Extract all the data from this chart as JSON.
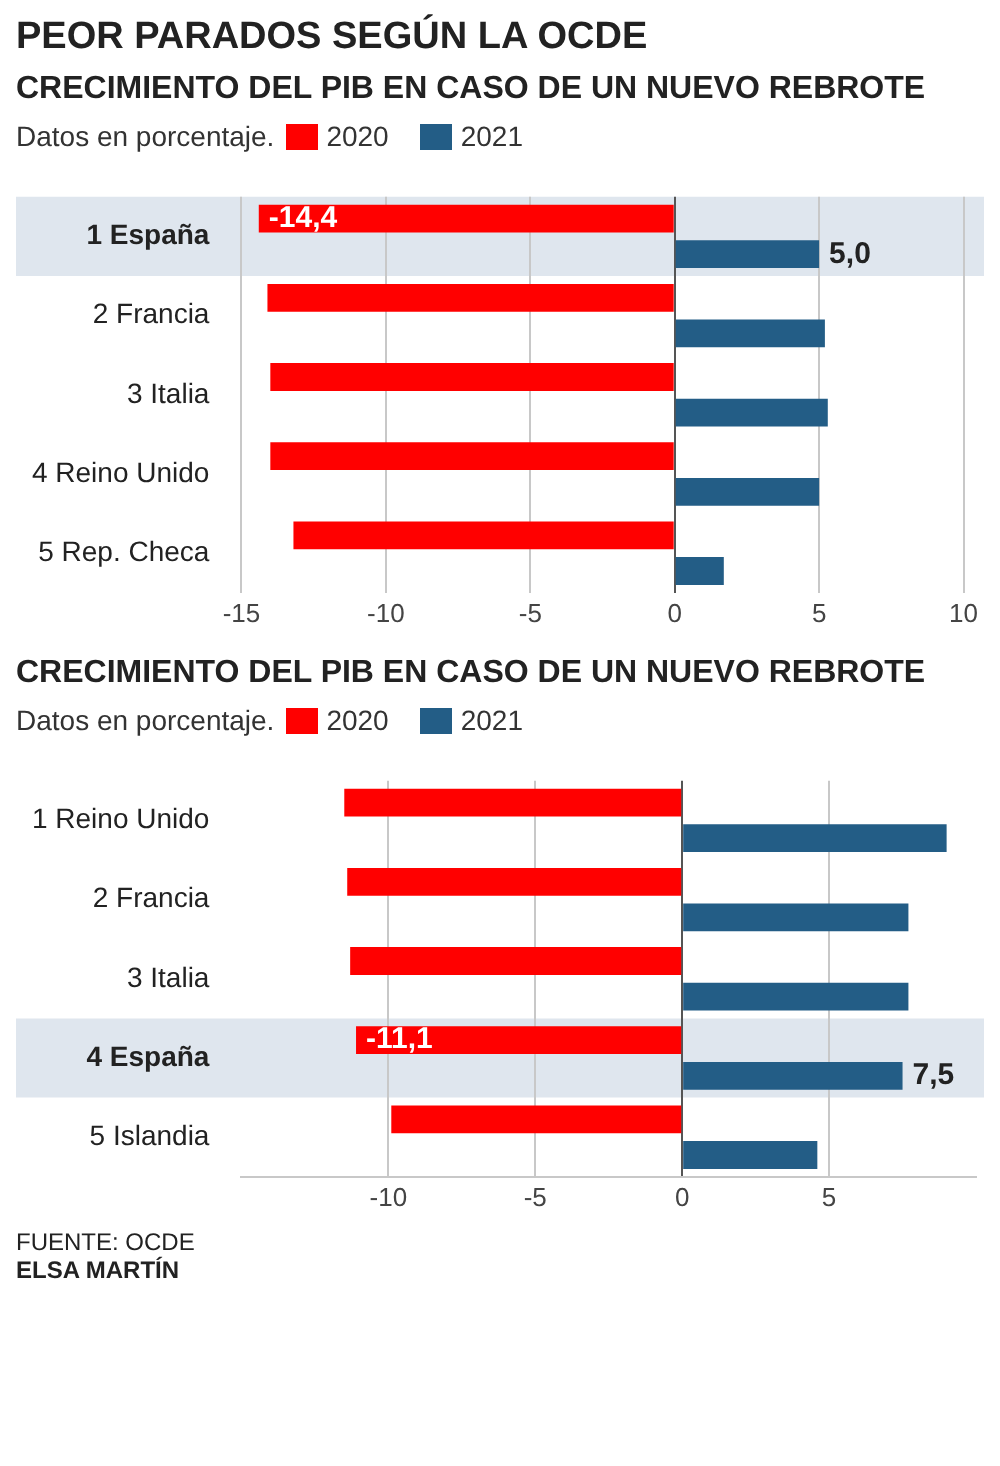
{
  "chart_data": [
    {
      "type": "bar",
      "orientation": "horizontal",
      "title": "PEOR PARADOS SEGÚN LA OCDE",
      "subtitle": "CRECIMIENTO DEL PIB EN CASO DE UN NUEVO REBROTE",
      "legend_title": "Datos en porcentaje.",
      "legend": "top left",
      "grid": "x",
      "categories": [
        "1 España",
        "2 Francia",
        "3 Italia",
        "4 Reino Unido",
        "5 Rep. Checa"
      ],
      "series": [
        {
          "name": "2020",
          "color": "#ff0000",
          "values": [
            -14.4,
            -14.1,
            -14.0,
            -14.0,
            -13.2
          ],
          "value_labels": [
            "-14,4",
            null,
            null,
            null,
            null
          ]
        },
        {
          "name": "2021",
          "color": "#235d86",
          "values": [
            5.0,
            5.2,
            5.3,
            5.0,
            1.7
          ],
          "value_labels": [
            "5,0",
            null,
            null,
            null,
            null
          ]
        }
      ],
      "bands": [
        {
          "axis": "y",
          "from": "1 España",
          "to": "1 España",
          "color": "#dfe6ee"
        }
      ],
      "xlim": [
        -15,
        10
      ],
      "xticks": [
        -15,
        -10,
        -5,
        0,
        5,
        10
      ]
    },
    {
      "type": "bar",
      "orientation": "horizontal",
      "title": "CRECIMIENTO DEL PIB EN CASO DE UN NUEVO REBROTE",
      "legend_title": "Datos en porcentaje.",
      "legend": "top left",
      "grid": "x",
      "categories": [
        "1 Reino Unido",
        "2 Francia",
        "3 Italia",
        "4 España",
        "5 Islandia"
      ],
      "series": [
        {
          "name": "2020",
          "color": "#ff0000",
          "values": [
            -11.5,
            -11.4,
            -11.3,
            -11.1,
            -9.9
          ],
          "value_labels": [
            null,
            null,
            null,
            "-11,1",
            null
          ]
        },
        {
          "name": "2021",
          "color": "#235d86",
          "values": [
            9.0,
            7.7,
            7.7,
            7.5,
            4.6
          ],
          "value_labels": [
            null,
            null,
            null,
            "7,5",
            null
          ]
        }
      ],
      "bands": [
        {
          "axis": "y",
          "from": "4 España",
          "to": "4 España",
          "color": "#dfe6ee"
        }
      ],
      "xlim": [
        -15,
        10
      ],
      "xticks": [
        -10,
        -5,
        0,
        5
      ],
      "annotations": [
        "FUENTE: OCDE",
        "ELSA MARTÍN"
      ]
    }
  ]
}
